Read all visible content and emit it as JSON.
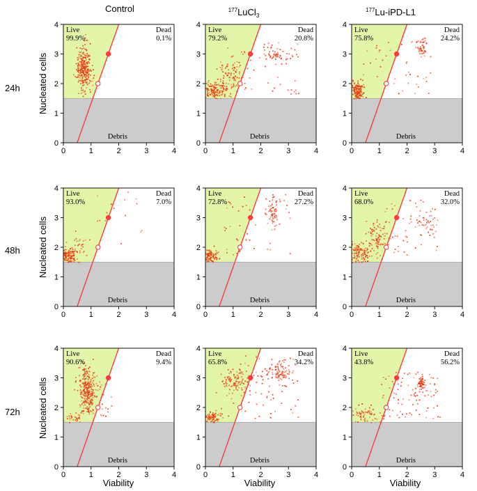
{
  "figure": {
    "columns": [
      {
        "title": "Control"
      },
      {
        "title_sup": "177",
        "title_main": "LuCl",
        "title_sub": "3"
      },
      {
        "title_sup": "177",
        "title_main": "Lu-iPD-L1"
      }
    ],
    "rows": [
      "24h",
      "48h",
      "72h"
    ],
    "y_axis_label": "Nucleated cells",
    "x_axis_label": "Viability",
    "colors": {
      "live_region": "#e2f5a8",
      "debris_region": "#cccccc",
      "gate_line": "#ff3b3b",
      "dots": "#e8350f"
    }
  },
  "chart_data": [
    {
      "type": "scatter",
      "column": "Control",
      "row": "24h",
      "live_label": "Live",
      "dead_label": "Dead",
      "debris_label": "Debris",
      "live": "99.9%",
      "dead": "0.1%",
      "xlim": [
        0,
        4
      ],
      "ylim": [
        0,
        4
      ],
      "x_ticks": [
        "0",
        "1",
        "2",
        "3",
        "4"
      ],
      "y_ticks": [
        "0",
        "1",
        "2",
        "3",
        "4"
      ],
      "gate_line": [
        [
          0.5,
          0
        ],
        [
          2.0,
          4.0
        ]
      ],
      "debris_threshold": 1.5,
      "clusters": [
        {
          "cx": 0.75,
          "cy": 2.55,
          "sx": 0.13,
          "sy": 0.38,
          "n": 260
        }
      ],
      "sparse": []
    },
    {
      "type": "scatter",
      "column": "177LuCl3",
      "row": "24h",
      "live_label": "Live",
      "dead_label": "Dead",
      "debris_label": "Debris",
      "live": "79.2%",
      "dead": "20.8%",
      "xlim": [
        0,
        4
      ],
      "ylim": [
        0,
        4
      ],
      "x_ticks": [
        "0",
        "1",
        "2",
        "3",
        "4"
      ],
      "y_ticks": [
        "0",
        "1",
        "2",
        "3",
        "4"
      ],
      "gate_line": [
        [
          0.5,
          0
        ],
        [
          2.0,
          4.0
        ]
      ],
      "debris_threshold": 1.5,
      "clusters": [
        {
          "cx": 0.3,
          "cy": 1.75,
          "sx": 0.3,
          "sy": 0.18,
          "n": 170
        },
        {
          "cx": 0.9,
          "cy": 2.3,
          "sx": 0.22,
          "sy": 0.3,
          "n": 90
        },
        {
          "cx": 2.55,
          "cy": 2.95,
          "sx": 0.22,
          "sy": 0.12,
          "n": 50
        }
      ],
      "sparse": [
        {
          "x0": 1.3,
          "x1": 3.5,
          "y0": 1.6,
          "y1": 3.6,
          "n": 40
        }
      ]
    },
    {
      "type": "scatter",
      "column": "177Lu-iPD-L1",
      "row": "24h",
      "live_label": "Live",
      "dead_label": "Dead",
      "debris_label": "Debris",
      "live": "75.8%",
      "dead": "24.2%",
      "xlim": [
        0,
        4
      ],
      "ylim": [
        0,
        4
      ],
      "x_ticks": [
        "0",
        "1",
        "2",
        "3",
        "4"
      ],
      "y_ticks": [
        "0",
        "1",
        "2",
        "3",
        "4"
      ],
      "gate_line": [
        [
          0.5,
          0
        ],
        [
          2.0,
          4.0
        ]
      ],
      "debris_threshold": 1.5,
      "clusters": [
        {
          "cx": 0.2,
          "cy": 1.75,
          "sx": 0.14,
          "sy": 0.16,
          "n": 150
        },
        {
          "cx": 2.55,
          "cy": 3.2,
          "sx": 0.09,
          "sy": 0.15,
          "n": 45
        }
      ],
      "sparse": [
        {
          "x0": 0.4,
          "x1": 3.0,
          "y0": 1.6,
          "y1": 3.5,
          "n": 45
        }
      ]
    },
    {
      "type": "scatter",
      "column": "Control",
      "row": "48h",
      "live_label": "Live",
      "dead_label": "Dead",
      "debris_label": "Debris",
      "live": "93.0%",
      "dead": "7.0%",
      "xlim": [
        0,
        4
      ],
      "ylim": [
        0,
        4
      ],
      "x_ticks": [
        "0",
        "1",
        "2",
        "3",
        "4"
      ],
      "y_ticks": [
        "0",
        "1",
        "2",
        "3",
        "4"
      ],
      "gate_line": [
        [
          0.5,
          0
        ],
        [
          2.0,
          4.0
        ]
      ],
      "debris_threshold": 1.5,
      "clusters": [
        {
          "cx": 0.2,
          "cy": 1.7,
          "sx": 0.14,
          "sy": 0.15,
          "n": 120
        },
        {
          "cx": 0.55,
          "cy": 2.0,
          "sx": 0.18,
          "sy": 0.25,
          "n": 35
        }
      ],
      "sparse": [
        {
          "x0": 1.2,
          "x1": 3.0,
          "y0": 2.0,
          "y1": 3.9,
          "n": 15
        }
      ]
    },
    {
      "type": "scatter",
      "column": "177LuCl3",
      "row": "48h",
      "live_label": "Live",
      "dead_label": "Dead",
      "debris_label": "Debris",
      "live": "72.8%",
      "dead": "27.2%",
      "xlim": [
        0,
        4
      ],
      "ylim": [
        0,
        4
      ],
      "x_ticks": [
        "0",
        "1",
        "2",
        "3",
        "4"
      ],
      "y_ticks": [
        "0",
        "1",
        "2",
        "3",
        "4"
      ],
      "gate_line": [
        [
          0.5,
          0
        ],
        [
          2.0,
          4.0
        ]
      ],
      "debris_threshold": 1.5,
      "clusters": [
        {
          "cx": 0.2,
          "cy": 1.65,
          "sx": 0.14,
          "sy": 0.12,
          "n": 100
        },
        {
          "cx": 2.45,
          "cy": 3.1,
          "sx": 0.1,
          "sy": 0.25,
          "n": 55
        }
      ],
      "sparse": [
        {
          "x0": 0.6,
          "x1": 3.2,
          "y0": 1.6,
          "y1": 3.8,
          "n": 50
        }
      ]
    },
    {
      "type": "scatter",
      "column": "177Lu-iPD-L1",
      "row": "48h",
      "live_label": "Live",
      "dead_label": "Dead",
      "debris_label": "Debris",
      "live": "68.0%",
      "dead": "32.0%",
      "xlim": [
        0,
        4
      ],
      "ylim": [
        0,
        4
      ],
      "x_ticks": [
        "0",
        "1",
        "2",
        "3",
        "4"
      ],
      "y_ticks": [
        "0",
        "1",
        "2",
        "3",
        "4"
      ],
      "gate_line": [
        [
          0.5,
          0
        ],
        [
          2.0,
          4.0
        ]
      ],
      "debris_threshold": 1.5,
      "clusters": [
        {
          "cx": 0.3,
          "cy": 1.8,
          "sx": 0.25,
          "sy": 0.2,
          "n": 120
        },
        {
          "cx": 0.9,
          "cy": 2.3,
          "sx": 0.2,
          "sy": 0.3,
          "n": 90
        },
        {
          "cx": 2.7,
          "cy": 2.85,
          "sx": 0.25,
          "sy": 0.15,
          "n": 35
        }
      ],
      "sparse": [
        {
          "x0": 1.2,
          "x1": 3.2,
          "y0": 1.7,
          "y1": 3.6,
          "n": 50
        }
      ]
    },
    {
      "type": "scatter",
      "column": "Control",
      "row": "72h",
      "live_label": "Live",
      "dead_label": "Dead",
      "debris_label": "Debris",
      "live": "90.6%",
      "dead": "9.4%",
      "xlim": [
        0,
        4
      ],
      "ylim": [
        0,
        4
      ],
      "x_ticks": [
        "0",
        "1",
        "2",
        "3",
        "4"
      ],
      "y_ticks": [
        "0",
        "1",
        "2",
        "3",
        "4"
      ],
      "gate_line": [
        [
          0.5,
          0
        ],
        [
          2.0,
          4.0
        ]
      ],
      "debris_threshold": 1.5,
      "clusters": [
        {
          "cx": 0.85,
          "cy": 2.6,
          "sx": 0.15,
          "sy": 0.4,
          "n": 260
        },
        {
          "cx": 0.35,
          "cy": 1.6,
          "sx": 0.2,
          "sy": 0.08,
          "n": 30
        }
      ],
      "sparse": [
        {
          "x0": 1.0,
          "x1": 1.8,
          "y0": 1.6,
          "y1": 3.0,
          "n": 25
        }
      ]
    },
    {
      "type": "scatter",
      "column": "177LuCl3",
      "row": "72h",
      "live_label": "Live",
      "dead_label": "Dead",
      "debris_label": "Debris",
      "live": "65.8%",
      "dead": "34.2%",
      "xlim": [
        0,
        4
      ],
      "ylim": [
        0,
        4
      ],
      "x_ticks": [
        "0",
        "1",
        "2",
        "3",
        "4"
      ],
      "y_ticks": [
        "0",
        "1",
        "2",
        "3",
        "4"
      ],
      "gate_line": [
        [
          0.5,
          0
        ],
        [
          2.0,
          4.0
        ]
      ],
      "debris_threshold": 1.5,
      "clusters": [
        {
          "cx": 0.25,
          "cy": 1.65,
          "sx": 0.18,
          "sy": 0.12,
          "n": 80
        },
        {
          "cx": 1.1,
          "cy": 2.85,
          "sx": 0.25,
          "sy": 0.22,
          "n": 110
        },
        {
          "cx": 2.6,
          "cy": 3.15,
          "sx": 0.25,
          "sy": 0.18,
          "n": 90
        }
      ],
      "sparse": [
        {
          "x0": 1.3,
          "x1": 3.4,
          "y0": 1.6,
          "y1": 3.8,
          "n": 60
        }
      ]
    },
    {
      "type": "scatter",
      "column": "177Lu-iPD-L1",
      "row": "72h",
      "live_label": "Live",
      "dead_label": "Dead",
      "debris_label": "Debris",
      "live": "43.8%",
      "dead": "56.2%",
      "xlim": [
        0,
        4
      ],
      "ylim": [
        0,
        4
      ],
      "x_ticks": [
        "0",
        "1",
        "2",
        "3",
        "4"
      ],
      "y_ticks": [
        "0",
        "1",
        "2",
        "3",
        "4"
      ],
      "gate_line": [
        [
          0.5,
          0
        ],
        [
          2.0,
          4.0
        ]
      ],
      "debris_threshold": 1.5,
      "clusters": [
        {
          "cx": 0.5,
          "cy": 1.7,
          "sx": 0.3,
          "sy": 0.18,
          "n": 80
        },
        {
          "cx": 2.5,
          "cy": 2.8,
          "sx": 0.08,
          "sy": 0.1,
          "n": 55
        }
      ],
      "sparse": [
        {
          "x0": 1.0,
          "x1": 3.2,
          "y0": 1.6,
          "y1": 3.2,
          "n": 90
        }
      ]
    }
  ]
}
